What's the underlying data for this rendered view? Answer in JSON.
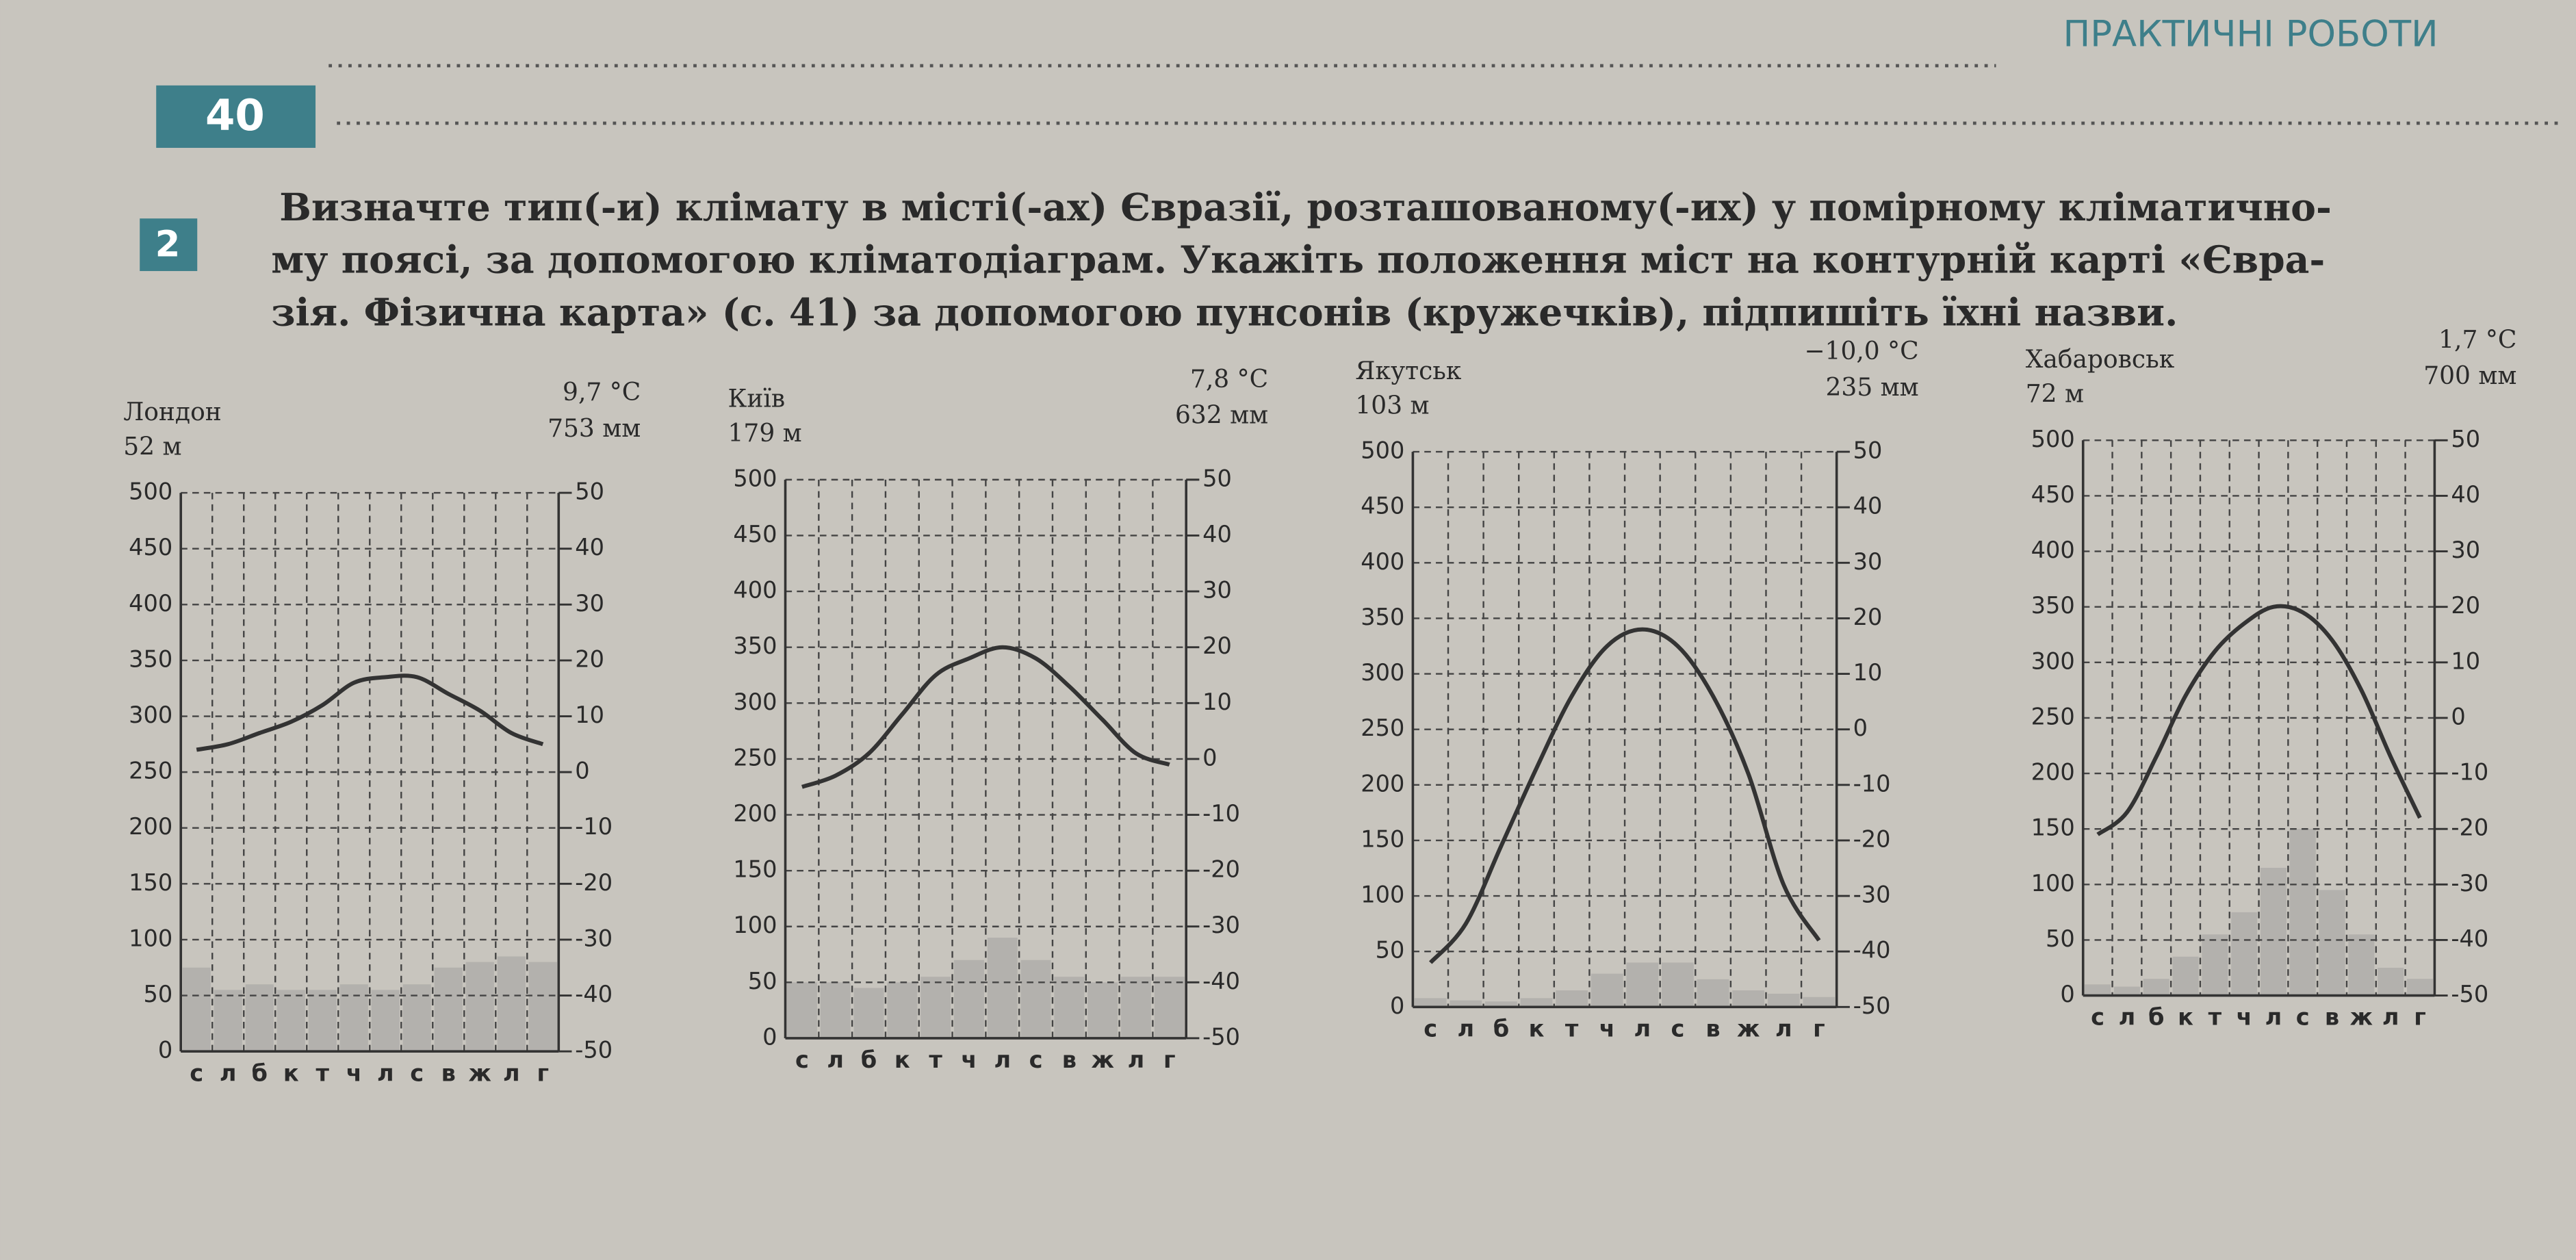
{
  "header": {
    "page_number": "40",
    "section": "ПРАКТИЧНІ РОБОТИ"
  },
  "task": {
    "number": "2",
    "lines": [
      "Визначте тип(-и) клімату в місті(-ах) Євразії, розташованому(-их) у помірному кліматично-",
      "му поясі, за допомогою кліматодіаграм. Укажіть положення міст на контурній карті «Євра-",
      "зія. Фізична карта» (с. 41) за допомогою пунсонів (кружечків), підпишіть їхні назви."
    ]
  },
  "chart_data": [
    {
      "type": "bar",
      "city": "Лондон",
      "elevation": "52 м",
      "annual_temperature": "9,7 °C",
      "annual_precipitation": "753 мм",
      "categories": [
        "с",
        "л",
        "б",
        "к",
        "т",
        "ч",
        "л",
        "с",
        "в",
        "ж",
        "л",
        "г"
      ],
      "series": [
        {
          "type": "bar",
          "color": "#b3b1ad",
          "values": [
            75,
            55,
            60,
            55,
            55,
            60,
            55,
            60,
            75,
            80,
            85,
            80
          ]
        },
        {
          "type": "line",
          "axis": "y2",
          "color": "#333333",
          "values": [
            4,
            5,
            7,
            9,
            12,
            16,
            17,
            17,
            14,
            11,
            7,
            5
          ]
        }
      ],
      "ylim": [
        0,
        500
      ],
      "yticks": [
        0,
        50,
        100,
        150,
        200,
        250,
        300,
        350,
        400,
        450,
        500
      ],
      "y2lim": [
        -50,
        50
      ],
      "y2ticks": [
        -50,
        -40,
        -30,
        -20,
        -10,
        0,
        10,
        20,
        30,
        40,
        50
      ],
      "grid": true
    },
    {
      "type": "bar",
      "city": "Київ",
      "elevation": "179 м",
      "annual_temperature": "7,8 °C",
      "annual_precipitation": "632 мм",
      "categories": [
        "с",
        "л",
        "б",
        "к",
        "т",
        "ч",
        "л",
        "с",
        "в",
        "ж",
        "л",
        "г"
      ],
      "series": [
        {
          "type": "bar",
          "color": "#b3b1ad",
          "values": [
            50,
            50,
            45,
            50,
            55,
            70,
            90,
            70,
            55,
            50,
            55,
            55
          ]
        },
        {
          "type": "line",
          "axis": "y2",
          "color": "#333333",
          "values": [
            -5,
            -3,
            1,
            8,
            15,
            18,
            20,
            18,
            13,
            7,
            1,
            -1
          ]
        }
      ],
      "ylim": [
        0,
        500
      ],
      "yticks": [
        0,
        50,
        100,
        150,
        200,
        250,
        300,
        350,
        400,
        450,
        500
      ],
      "y2lim": [
        -50,
        50
      ],
      "y2ticks": [
        -50,
        -40,
        -30,
        -20,
        -10,
        0,
        10,
        20,
        30,
        40,
        50
      ],
      "grid": true
    },
    {
      "type": "bar",
      "city": "Якутськ",
      "elevation": "103 м",
      "annual_temperature": "−10,0 °C",
      "annual_precipitation": "235 мм",
      "categories": [
        "с",
        "л",
        "б",
        "к",
        "т",
        "ч",
        "л",
        "с",
        "в",
        "ж",
        "л",
        "г"
      ],
      "series": [
        {
          "type": "bar",
          "color": "#b3b1ad",
          "values": [
            8,
            6,
            5,
            8,
            15,
            30,
            40,
            40,
            25,
            15,
            12,
            9
          ]
        },
        {
          "type": "line",
          "axis": "y2",
          "color": "#333333",
          "values": [
            -42,
            -35,
            -21,
            -7,
            6,
            15,
            18,
            15,
            6,
            -8,
            -28,
            -38
          ]
        }
      ],
      "ylim": [
        0,
        500
      ],
      "yticks": [
        0,
        50,
        100,
        150,
        200,
        250,
        300,
        350,
        400,
        450,
        500
      ],
      "y2lim": [
        -50,
        50
      ],
      "y2ticks": [
        -50,
        -40,
        -30,
        -20,
        -10,
        0,
        10,
        20,
        30,
        40,
        50
      ],
      "grid": true
    },
    {
      "type": "bar",
      "city": "Хабаровськ",
      "elevation": "72 м",
      "annual_temperature": "1,7 °C",
      "annual_precipitation": "700 мм",
      "categories": [
        "с",
        "л",
        "б",
        "к",
        "т",
        "ч",
        "л",
        "с",
        "в",
        "ж",
        "л",
        "г"
      ],
      "series": [
        {
          "type": "bar",
          "color": "#b3b1ad",
          "values": [
            10,
            8,
            15,
            35,
            55,
            75,
            115,
            150,
            95,
            55,
            25,
            15
          ]
        },
        {
          "type": "line",
          "axis": "y2",
          "color": "#333333",
          "values": [
            -21,
            -17,
            -7,
            4,
            12,
            17,
            20,
            19,
            14,
            5,
            -7,
            -18
          ]
        }
      ],
      "ylim": [
        0,
        500
      ],
      "yticks": [
        0,
        50,
        100,
        150,
        200,
        250,
        300,
        350,
        400,
        450,
        500
      ],
      "y2lim": [
        -50,
        50
      ],
      "y2ticks": [
        -50,
        -40,
        -30,
        -20,
        -10,
        0,
        10,
        20,
        30,
        40,
        50
      ],
      "grid": true
    }
  ]
}
